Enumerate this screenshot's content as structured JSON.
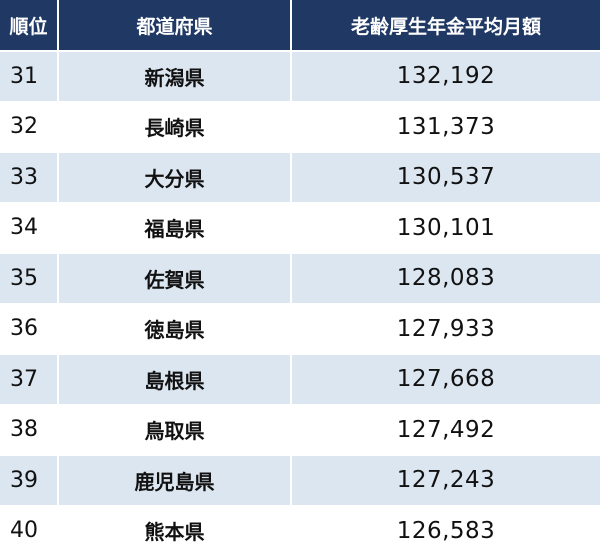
{
  "table": {
    "header": [
      "順位",
      "都道府県",
      "老齢厚生年金平均月額"
    ],
    "rows": [
      [
        "31",
        "新潟県",
        "132,192"
      ],
      [
        "32",
        "長崎県",
        "131,373"
      ],
      [
        "33",
        "大分県",
        "130,537"
      ],
      [
        "34",
        "福島県",
        "130,101"
      ],
      [
        "35",
        "佐賀県",
        "128,083"
      ],
      [
        "36",
        "徳島県",
        "127,933"
      ],
      [
        "37",
        "島根県",
        "127,668"
      ],
      [
        "38",
        "鳥取県",
        "127,492"
      ],
      [
        "39",
        "鹿児島県",
        "127,243"
      ],
      [
        "40",
        "熊本県",
        "126,583"
      ]
    ]
  }
}
